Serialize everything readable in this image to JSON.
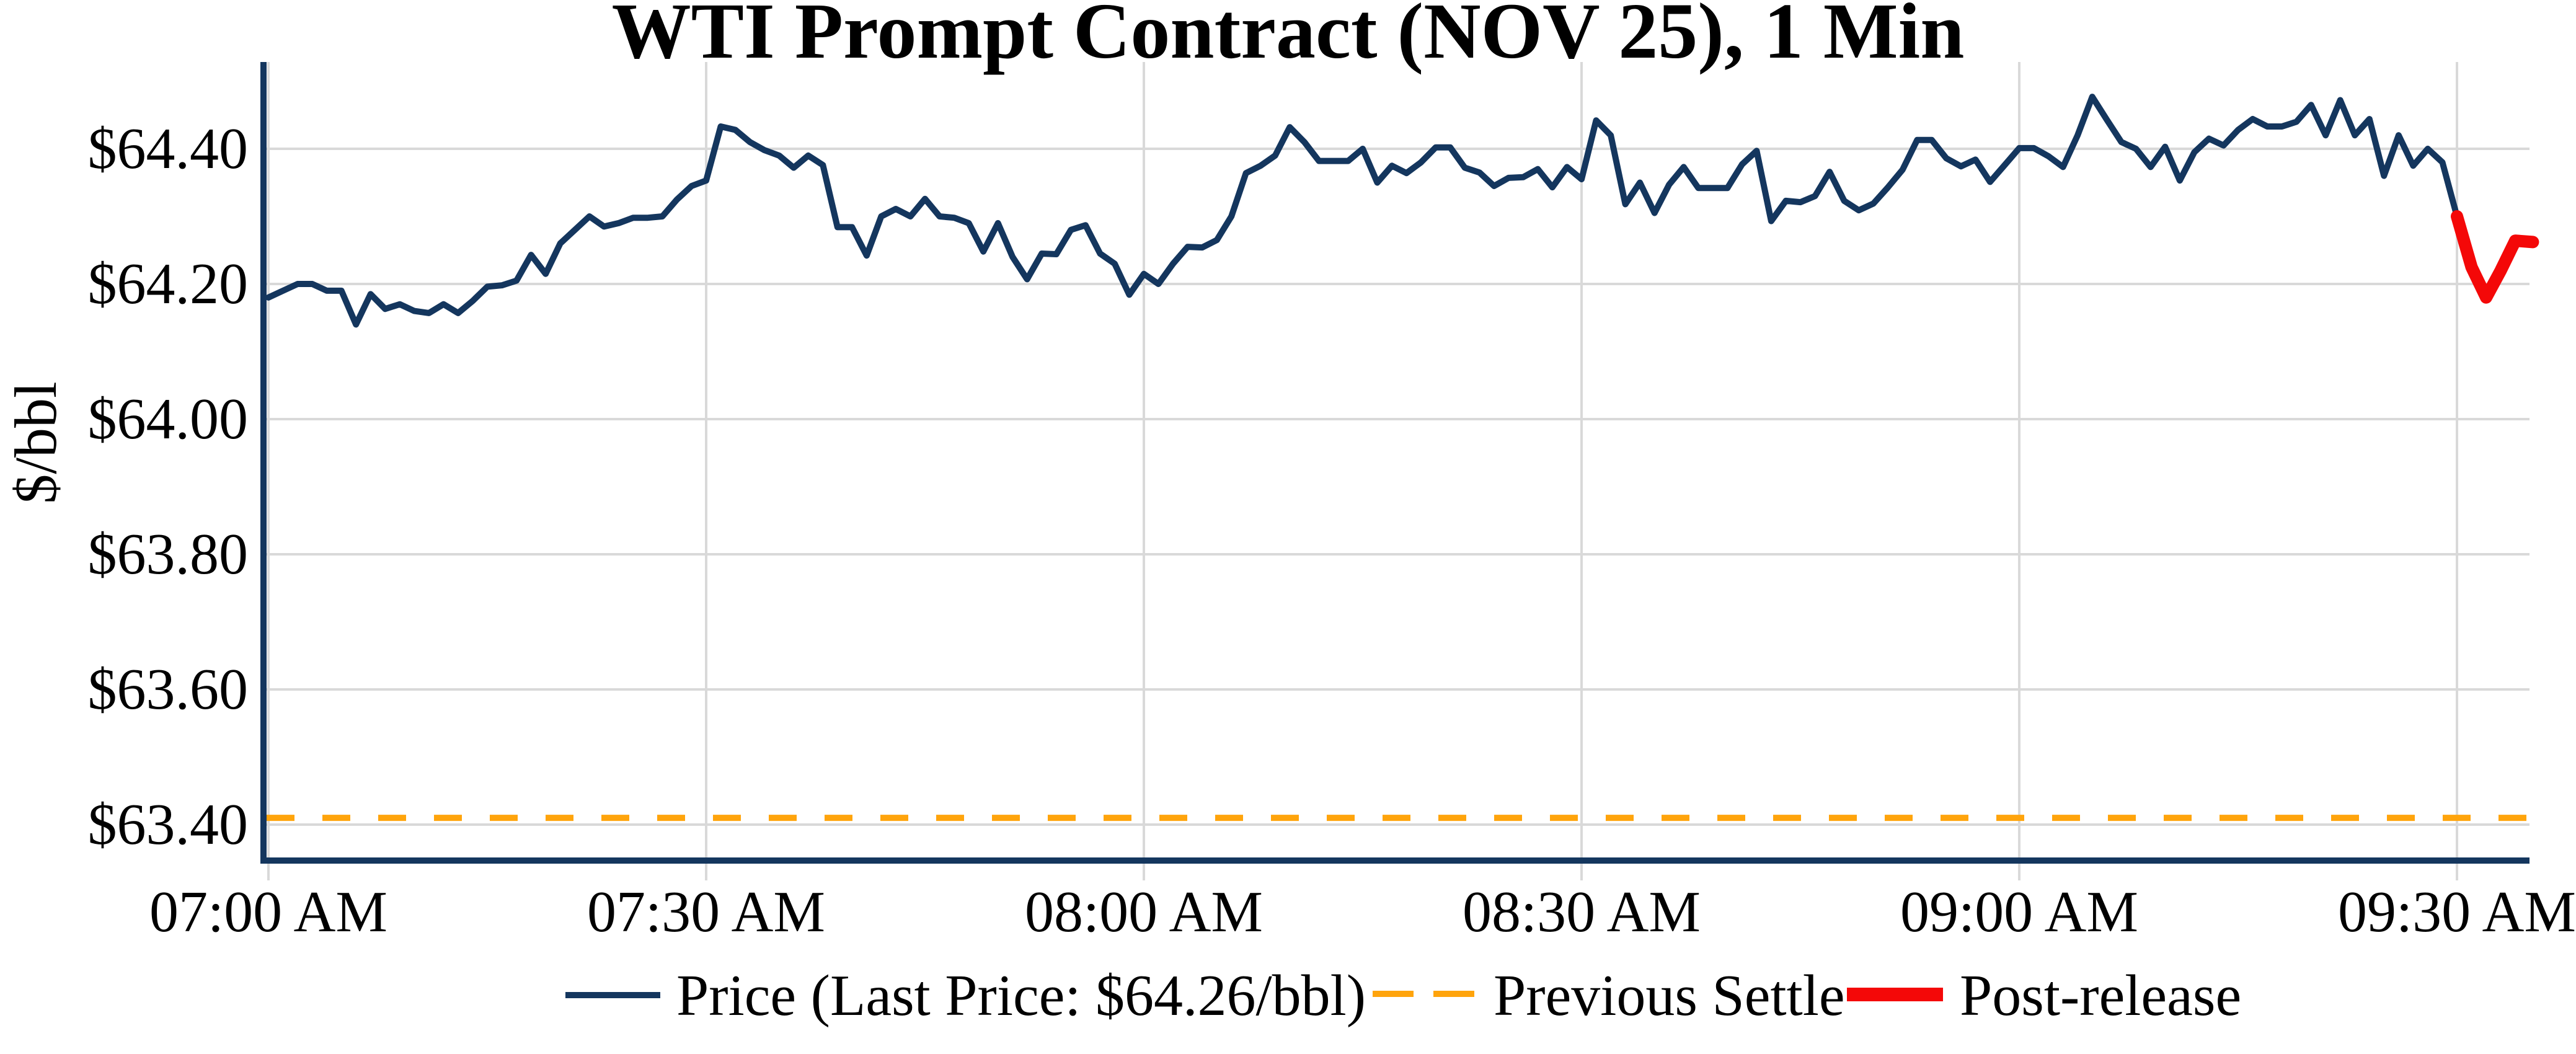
{
  "title": "WTI Prompt Contract (NOV 25), 1 Min",
  "chart_data": {
    "type": "line",
    "title": "WTI Prompt Contract (NOV 25), 1 Min",
    "xlabel": "",
    "ylabel": "$/bbl",
    "grid": true,
    "legend_position": "bottom",
    "colors": {
      "price_line": "#14365e",
      "post_release_line": "#f40808",
      "previous_settle_line": "#ffa40c",
      "gridline": "#d9d9d9",
      "axis_spine": "#14365e",
      "text": "#000000",
      "background": "#ffffff"
    },
    "x_axis": {
      "tick_labels": [
        "07:00 AM",
        "07:30 AM",
        "08:00 AM",
        "08:30 AM",
        "09:00 AM",
        "09:30 AM"
      ],
      "tick_minutes": [
        0,
        30,
        60,
        90,
        120,
        150
      ],
      "range_minutes": [
        0,
        155.2
      ]
    },
    "y_axis": {
      "tick_labels": [
        "$64.40",
        "$64.20",
        "$64.00",
        "$63.80",
        "$63.60",
        "$63.40"
      ],
      "tick_values": [
        64.4,
        64.2,
        64.0,
        63.8,
        63.6,
        63.4
      ],
      "ylim": [
        63.35,
        64.53
      ]
    },
    "last_price": "$64.26/bbl",
    "previous_settle": 63.41,
    "series": [
      {
        "name": "Price (Last Price: $64.26/bbl)",
        "kind": "line",
        "color": "#14365e",
        "stroke_width": 10,
        "start_minute": 0,
        "step_minutes": 1,
        "values": [
          64.18,
          64.19,
          64.2,
          64.2,
          64.19,
          64.19,
          64.14,
          64.185,
          64.163,
          64.17,
          64.16,
          64.157,
          64.17,
          64.157,
          64.175,
          64.196,
          64.198,
          64.205,
          64.243,
          64.215,
          64.26,
          64.28,
          64.3,
          64.285,
          64.29,
          64.298,
          64.298,
          64.3,
          64.325,
          64.345,
          64.353,
          64.433,
          64.428,
          64.41,
          64.398,
          64.39,
          64.372,
          64.39,
          64.376,
          64.284,
          64.284,
          64.242,
          64.3,
          64.311,
          64.3,
          64.326,
          64.3,
          64.298,
          64.29,
          64.248,
          64.29,
          64.24,
          64.207,
          64.245,
          64.244,
          64.28,
          64.287,
          64.245,
          64.23,
          64.184,
          64.215,
          64.2,
          64.23,
          64.255,
          64.254,
          64.265,
          64.3,
          64.364,
          64.375,
          64.39,
          64.432,
          64.41,
          64.382,
          64.382,
          64.382,
          64.4,
          64.35,
          64.375,
          64.364,
          64.38,
          64.402,
          64.402,
          64.372,
          64.365,
          64.345,
          64.357,
          64.358,
          64.37,
          64.343,
          64.373,
          64.355,
          64.442,
          64.42,
          64.318,
          64.35,
          64.305,
          64.347,
          64.373,
          64.342,
          64.342,
          64.342,
          64.377,
          64.397,
          64.293,
          64.323,
          64.321,
          64.33,
          64.366,
          64.323,
          64.309,
          64.319,
          64.343,
          64.369,
          64.413,
          64.413,
          64.386,
          64.374,
          64.384,
          64.351,
          64.376,
          64.401,
          64.401,
          64.389,
          64.373,
          64.42,
          64.477,
          64.443,
          64.41,
          64.4,
          64.373,
          64.403,
          64.353,
          64.395,
          64.415,
          64.405,
          64.428,
          64.444,
          64.433,
          64.433,
          64.44,
          64.465,
          64.42,
          64.472,
          64.42,
          64.444,
          64.36,
          64.42,
          64.375,
          64.4,
          64.38,
          64.3
        ]
      },
      {
        "name": "Post-release",
        "kind": "line",
        "color": "#f40808",
        "stroke_width": 20,
        "times": [
          150,
          151,
          152,
          153,
          154,
          155.2
        ],
        "values": [
          64.3,
          64.225,
          64.18,
          64.22,
          64.264,
          64.262
        ]
      },
      {
        "name": "Previous Settle",
        "kind": "hline",
        "color": "#ffa40c",
        "stroke_width": 10,
        "dash": [
          45,
          45
        ],
        "value": 63.41
      }
    ],
    "legend": [
      {
        "label": "Price (Last Price: $64.26/bbl)",
        "swatch": "line",
        "color": "#14365e"
      },
      {
        "label": "Previous Settle",
        "swatch": "dashes",
        "color": "#ffa40c"
      },
      {
        "label": "Post-release",
        "swatch": "thick-line",
        "color": "#f40808"
      }
    ]
  }
}
